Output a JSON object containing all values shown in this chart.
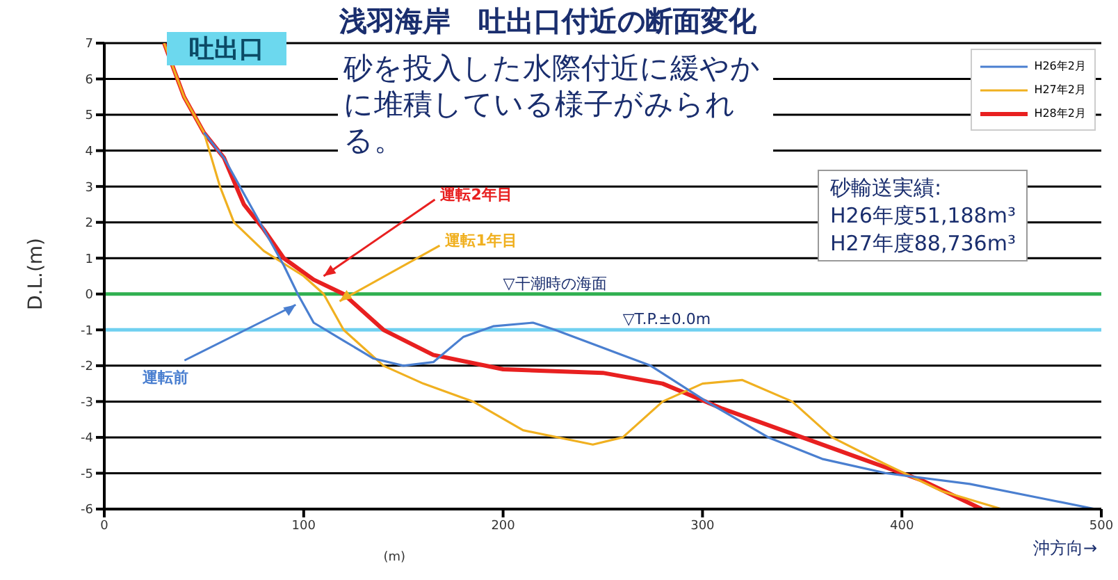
{
  "chart_data": {
    "type": "line",
    "title": "浅羽海岸　吐出口付近の断面変化",
    "xlabel": "(m)",
    "ylabel": "D.L.(m)",
    "xlim": [
      0,
      500
    ],
    "xticks": [
      0,
      100,
      200,
      300,
      400,
      500
    ],
    "ylim": [
      -6,
      7
    ],
    "yticks": [
      -6,
      -5,
      -4,
      -3,
      -2,
      -1,
      0,
      1,
      2,
      3,
      4,
      5,
      6,
      7
    ],
    "grid": "y",
    "legend": "top right",
    "marker": "none",
    "line_style": "solid",
    "series": [
      {
        "name": "H26年2月",
        "color": "#4a7fd0",
        "x": [
          50,
          60,
          70,
          80,
          90,
          97,
          105,
          120,
          135,
          150,
          165,
          180,
          195,
          215,
          226,
          250,
          274,
          302,
          333,
          360,
          392,
          434,
          470,
          497
        ],
        "values": [
          4.5,
          3.8,
          2.8,
          1.8,
          0.8,
          0,
          -0.8,
          -1.3,
          -1.8,
          -2,
          -1.9,
          -1.2,
          -0.9,
          -0.8,
          -1,
          -1.5,
          -2,
          -3,
          -4,
          -4.6,
          -5,
          -5.3,
          -5.7,
          -6
        ]
      },
      {
        "name": "H27年2月",
        "color": "#f0b020",
        "x": [
          30,
          40,
          50,
          58,
          65,
          80,
          100,
          110,
          120,
          140,
          160,
          185,
          210,
          245,
          260,
          280,
          300,
          320,
          345,
          365,
          390,
          420,
          450
        ],
        "values": [
          7,
          5.5,
          4.5,
          3,
          2,
          1.2,
          0.5,
          0,
          -1,
          -2,
          -2.5,
          -3,
          -3.8,
          -4.2,
          -4,
          -3,
          -2.5,
          -2.4,
          -3,
          -4,
          -4.7,
          -5.5,
          -6
        ]
      },
      {
        "name": "H28年2月",
        "color": "#e82020",
        "x": [
          30,
          40,
          50,
          60,
          70,
          80,
          90,
          105,
          120,
          140,
          165,
          200,
          250,
          280,
          310,
          350,
          380,
          410,
          440
        ],
        "values": [
          7,
          5.5,
          4.5,
          3.8,
          2.5,
          1.8,
          1,
          0.4,
          0,
          -1,
          -1.7,
          -2.1,
          -2.2,
          -2.5,
          -3.2,
          -4,
          -4.6,
          -5.2,
          -6
        ]
      }
    ],
    "ref_lines": [
      {
        "axis": "y",
        "value": 0,
        "label": "▽干潮時の海面",
        "color": "#30b050"
      },
      {
        "axis": "y",
        "value": -1,
        "label": "▽T.P.±0.0m",
        "color": "#70d0f0"
      }
    ],
    "annotations": [
      "吐出口",
      "砂を投入した水際付近に緩やかに堆積している様子がみられる。",
      "砂輸送実績:",
      "H26年度51,188m³",
      "H27年度88,736m³",
      {
        "text": "運転2年目",
        "x": 110,
        "y": 0.5
      },
      {
        "text": "運転1年目",
        "x": 118,
        "y": -0.2
      },
      {
        "text": "運転前",
        "x": 96,
        "y": -0.3
      },
      "沖方向→"
    ]
  }
}
